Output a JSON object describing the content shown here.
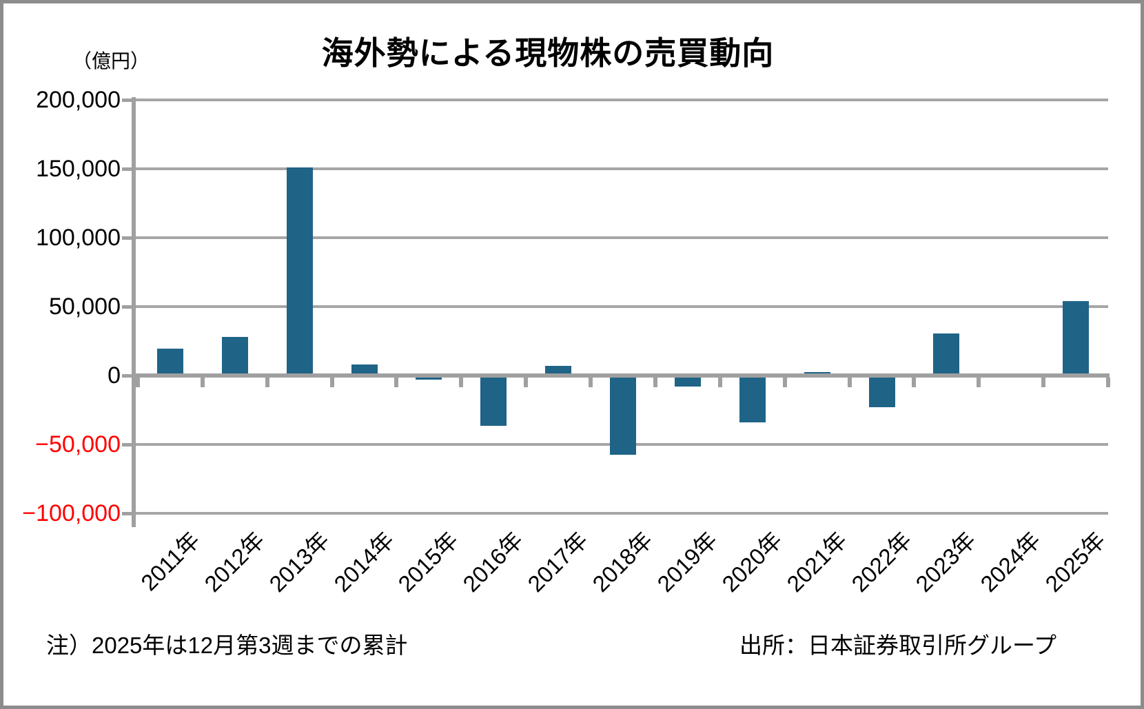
{
  "header": {
    "title": "海外勢による現物株の売買動向",
    "unit_label": "（億円）"
  },
  "chart_data": {
    "type": "bar",
    "title": "海外勢による現物株の売買動向",
    "unit": "億円",
    "categories": [
      "2011年",
      "2012年",
      "2013年",
      "2014年",
      "2015年",
      "2016年",
      "2017年",
      "2018年",
      "2019年",
      "2020年",
      "2021年",
      "2022年",
      "2023年",
      "2024年",
      "2025年"
    ],
    "values": [
      19500,
      28000,
      151000,
      8000,
      -3000,
      -36500,
      7000,
      -57500,
      -8000,
      -34000,
      2500,
      -23000,
      30500,
      1500,
      54000
    ],
    "y_ticks": [
      {
        "value": 200000,
        "label": "200,000"
      },
      {
        "value": 150000,
        "label": "150,000"
      },
      {
        "value": 100000,
        "label": "100,000"
      },
      {
        "value": 50000,
        "label": "50,000"
      },
      {
        "value": 0,
        "label": "0"
      },
      {
        "value": -50000,
        "label": "−50,000"
      },
      {
        "value": -100000,
        "label": "−100,000"
      }
    ],
    "ylim": [
      -100000,
      200000
    ],
    "grid": true,
    "legend": false,
    "bar_color": "#1f6387",
    "gridline_color": "#a6a6a6",
    "axis_color": "#a0a0a0",
    "negative_label_color": "#ff0000"
  },
  "footer": {
    "note": "注）2025年は12月第3週までの累計",
    "source": "出所：日本証券取引所グループ"
  }
}
